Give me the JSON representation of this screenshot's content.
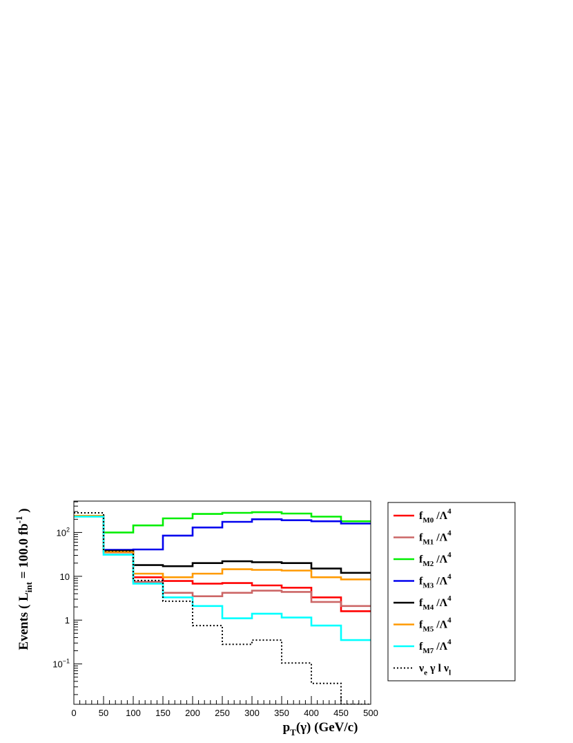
{
  "chart_data": {
    "type": "line",
    "style": "step-histogram",
    "xlabel": {
      "main": "p",
      "sub": "T",
      "rest": "(γ) (GeV/c)"
    },
    "ylabel": {
      "main": "Events  ( L",
      "sub": "int",
      "mid": " = 100.0 fb",
      "sup": "-1",
      "end": " )"
    },
    "x_bin_edges": [
      0,
      50,
      100,
      150,
      200,
      250,
      300,
      350,
      400,
      450,
      500
    ],
    "xlim": [
      0,
      500
    ],
    "ylim": [
      0.012,
      520
    ],
    "y_scale": "log",
    "x_ticks": [
      "0",
      "50",
      "100",
      "150",
      "200",
      "250",
      "300",
      "350",
      "400",
      "450",
      "500"
    ],
    "y_ticks": [
      {
        "value": 0.1,
        "base": "10",
        "exp": "−1"
      },
      {
        "value": 1,
        "base": "1",
        "exp": ""
      },
      {
        "value": 10,
        "base": "10",
        "exp": ""
      },
      {
        "value": 100,
        "base": "10",
        "exp": "2"
      }
    ],
    "legend_position": "right",
    "series": [
      {
        "name": "f_M0 /Λ^4",
        "label_main": "f",
        "label_sub": "M0",
        "label_rest": " /Λ",
        "label_sup": "4",
        "color": "#ff0000",
        "dashed": false,
        "values": [
          240,
          37,
          9.5,
          7.8,
          6.8,
          7.0,
          6.2,
          5.5,
          3.3,
          1.6
        ]
      },
      {
        "name": "f_M1 /Λ^4",
        "label_main": "f",
        "label_sub": "M1",
        "label_rest": " /Λ",
        "label_sup": "4",
        "color": "#cc6666",
        "dashed": false,
        "values": [
          240,
          35,
          7.5,
          4.2,
          3.5,
          4.2,
          4.7,
          4.4,
          2.6,
          2.1
        ]
      },
      {
        "name": "f_M2 /Λ^4",
        "label_main": "f",
        "label_sub": "M2",
        "label_rest": " /Λ",
        "label_sup": "4",
        "color": "#00ee00",
        "dashed": false,
        "values": [
          240,
          100,
          145,
          210,
          265,
          280,
          290,
          270,
          230,
          180
        ]
      },
      {
        "name": "f_M3 /Λ^4",
        "label_main": "f",
        "label_sub": "M3",
        "label_rest": " /Λ",
        "label_sup": "4",
        "color": "#0000ee",
        "dashed": false,
        "values": [
          240,
          40,
          41,
          85,
          130,
          175,
          200,
          190,
          180,
          160
        ]
      },
      {
        "name": "f_M4 /Λ^4",
        "label_main": "f",
        "label_sub": "M4",
        "label_rest": " /Λ",
        "label_sup": "4",
        "color": "#000000",
        "dashed": false,
        "values": [
          240,
          38,
          18,
          17,
          20,
          22,
          21,
          20,
          15,
          12
        ]
      },
      {
        "name": "f_M5 /Λ^4",
        "label_main": "f",
        "label_sub": "M5",
        "label_rest": " /Λ",
        "label_sup": "4",
        "color": "#ff9900",
        "dashed": false,
        "values": [
          240,
          36,
          11.5,
          9.5,
          11.5,
          14.5,
          14,
          13.5,
          9.5,
          8.5
        ]
      },
      {
        "name": "f_M7 /Λ^4",
        "label_main": "f",
        "label_sub": "M7",
        "label_rest": " /Λ",
        "label_sup": "4",
        "color": "#00ffff",
        "dashed": false,
        "values": [
          230,
          31,
          6.8,
          3.3,
          2.1,
          1.1,
          1.4,
          1.15,
          0.75,
          0.35
        ]
      },
      {
        "name": "ν_e γ l ν_l",
        "label_main": "ν",
        "label_sub": "e",
        "label_rest": "  γ l  ν",
        "label_sub2": "l",
        "label_sup": "",
        "color": "#000000",
        "dashed": true,
        "values": [
          280,
          38,
          8.0,
          2.7,
          0.75,
          0.28,
          0.35,
          0.105,
          0.036,
          0.011
        ]
      }
    ]
  }
}
